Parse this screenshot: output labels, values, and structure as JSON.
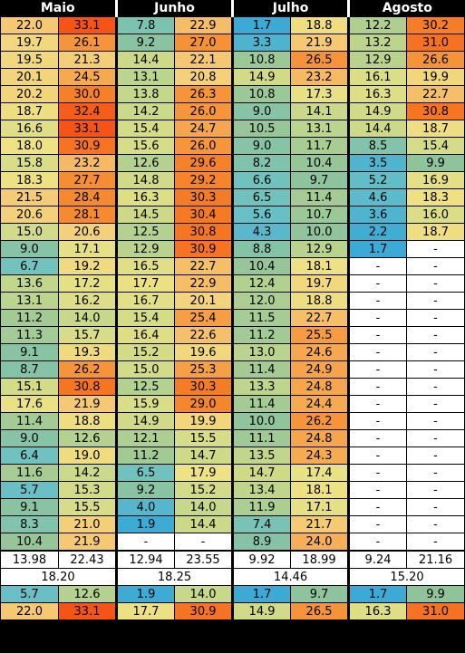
{
  "months": [
    "Maio",
    "Junho",
    "Julho",
    "Agosto"
  ],
  "rows": [
    [
      "22.0",
      "33.1",
      "7.8",
      "22.9",
      "1.7",
      "18.8",
      "12.2",
      "30.2"
    ],
    [
      "19.7",
      "26.1",
      "9.2",
      "27.0",
      "3.3",
      "21.9",
      "13.2",
      "31.0"
    ],
    [
      "19.5",
      "21.3",
      "14.4",
      "22.1",
      "10.8",
      "26.5",
      "12.9",
      "26.6"
    ],
    [
      "20.1",
      "24.5",
      "13.1",
      "20.8",
      "14.9",
      "23.2",
      "16.1",
      "19.9"
    ],
    [
      "20.2",
      "30.0",
      "13.8",
      "26.3",
      "10.8",
      "17.3",
      "16.3",
      "22.7"
    ],
    [
      "18.7",
      "32.4",
      "14.2",
      "26.0",
      "9.0",
      "14.1",
      "14.9",
      "30.8"
    ],
    [
      "16.6",
      "33.1",
      "15.4",
      "24.7",
      "10.5",
      "13.1",
      "14.4",
      "18.7"
    ],
    [
      "18.0",
      "30.9",
      "15.6",
      "26.0",
      "9.0",
      "11.7",
      "8.5",
      "15.4"
    ],
    [
      "15.8",
      "23.2",
      "12.6",
      "29.6",
      "8.2",
      "10.4",
      "3.5",
      "9.9"
    ],
    [
      "18.3",
      "27.7",
      "14.8",
      "29.2",
      "6.6",
      "9.7",
      "5.2",
      "16.9"
    ],
    [
      "21.5",
      "28.4",
      "16.3",
      "30.3",
      "6.5",
      "11.4",
      "4.6",
      "18.3"
    ],
    [
      "20.6",
      "28.1",
      "14.5",
      "30.4",
      "5.6",
      "10.7",
      "3.6",
      "16.0"
    ],
    [
      "15.0",
      "20.6",
      "12.5",
      "30.8",
      "4.3",
      "10.0",
      "2.2",
      "18.7"
    ],
    [
      "9.0",
      "17.1",
      "12.9",
      "30.9",
      "8.8",
      "12.9",
      "1.7",
      "-"
    ],
    [
      "6.7",
      "19.2",
      "16.5",
      "22.7",
      "10.4",
      "18.1",
      "-",
      "-"
    ],
    [
      "13.6",
      "17.2",
      "17.7",
      "22.9",
      "12.4",
      "19.7",
      "-",
      "-"
    ],
    [
      "13.1",
      "16.2",
      "16.7",
      "20.1",
      "12.0",
      "18.8",
      "-",
      "-"
    ],
    [
      "11.2",
      "14.0",
      "15.4",
      "25.4",
      "11.5",
      "22.7",
      "-",
      "-"
    ],
    [
      "11.3",
      "15.7",
      "16.4",
      "22.6",
      "11.2",
      "25.5",
      "-",
      "-"
    ],
    [
      "9.1",
      "19.3",
      "15.2",
      "19.6",
      "13.0",
      "24.6",
      "-",
      "-"
    ],
    [
      "8.7",
      "26.2",
      "15.0",
      "25.3",
      "11.4",
      "24.9",
      "-",
      "-"
    ],
    [
      "15.1",
      "30.8",
      "12.5",
      "30.3",
      "13.3",
      "24.8",
      "-",
      "-"
    ],
    [
      "17.6",
      "21.9",
      "15.9",
      "29.0",
      "11.4",
      "24.4",
      "-",
      "-"
    ],
    [
      "11.4",
      "18.8",
      "14.9",
      "19.9",
      "10.0",
      "26.2",
      "-",
      "-"
    ],
    [
      "9.0",
      "12.6",
      "12.1",
      "15.5",
      "11.1",
      "24.8",
      "-",
      "-"
    ],
    [
      "6.4",
      "19.0",
      "11.2",
      "14.7",
      "13.5",
      "24.3",
      "-",
      "-"
    ],
    [
      "11.6",
      "14.2",
      "6.5",
      "17.9",
      "14.7",
      "17.4",
      "-",
      "-"
    ],
    [
      "5.7",
      "15.3",
      "9.2",
      "15.2",
      "13.4",
      "18.1",
      "-",
      "-"
    ],
    [
      "9.1",
      "15.5",
      "4.0",
      "14.0",
      "11.9",
      "17.1",
      "-",
      "-"
    ],
    [
      "8.3",
      "21.0",
      "1.9",
      "14.4",
      "7.4",
      "21.7",
      "-",
      "-"
    ],
    [
      "10.4",
      "21.9",
      "-",
      "-",
      "8.9",
      "24.0",
      "-",
      "-"
    ]
  ],
  "averages": [
    "13.98",
    "22.43",
    "12.94",
    "23.55",
    "9.92",
    "18.99",
    "9.24",
    "21.16"
  ],
  "overall": [
    "18.20",
    "18.25",
    "14.46",
    "15.20"
  ],
  "minimums": [
    "5.7",
    "12.6",
    "1.9",
    "14.0",
    "1.7",
    "9.7",
    "1.7",
    "9.9"
  ],
  "maximums": [
    "22.0",
    "33.1",
    "17.7",
    "30.9",
    "14.9",
    "26.5",
    "16.3",
    "31.0"
  ]
}
